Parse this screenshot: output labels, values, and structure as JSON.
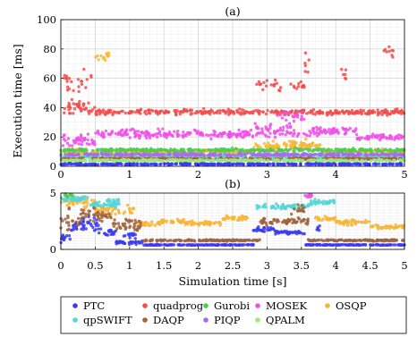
{
  "chart_data": [
    {
      "type": "scatter",
      "title": "(a)",
      "xlabel": "",
      "ylabel": "Execution time [ms]",
      "xlim": [
        0,
        5
      ],
      "ylim": [
        0,
        100
      ],
      "xticks": [
        0,
        0.5,
        1,
        1.5,
        2,
        2.5,
        3,
        3.5,
        4,
        4.5,
        5
      ],
      "xtick_labels": [
        "0",
        "",
        "1",
        "",
        "2",
        "",
        "3",
        "",
        "4",
        "",
        "5"
      ],
      "yticks": [
        0,
        20,
        40,
        60,
        80,
        100
      ],
      "ytick_labels": [
        "0",
        "20",
        "40",
        "60",
        "80",
        "100"
      ],
      "grid": true,
      "series": [
        {
          "name": "quadprog",
          "color": "#f24c4c",
          "segments": [
            [
              0,
              0.5,
              40,
              7
            ],
            [
              0.5,
              5,
              37,
              2.5
            ]
          ],
          "bursts": [
            [
              0.05,
              0.45,
              58,
              12
            ],
            [
              2.85,
              3.0,
              55,
              6
            ],
            [
              3.05,
              3.2,
              55,
              5
            ],
            [
              3.3,
              3.55,
              55,
              4
            ],
            [
              3.55,
              3.65,
              70,
              10
            ],
            [
              4.05,
              4.15,
              62,
              8
            ],
            [
              4.7,
              4.85,
              78,
              8
            ]
          ]
        },
        {
          "name": "MOSEK",
          "color": "#f050e8",
          "segments": [
            [
              0,
              0.5,
              17,
              6
            ],
            [
              0.5,
              2.8,
              22,
              4
            ],
            [
              2.8,
              3.8,
              24,
              6
            ],
            [
              3.8,
              4.3,
              24,
              3
            ],
            [
              4.3,
              5,
              20,
              2.5
            ]
          ],
          "bursts": [
            [
              3.15,
              3.55,
              35,
              6
            ]
          ]
        },
        {
          "name": "OSQP",
          "color": "#f7b63a",
          "segments": [
            [
              0,
              1.2,
              9,
              4
            ],
            [
              1.2,
              2.8,
              10,
              2
            ],
            [
              2.8,
              3.8,
              13,
              4
            ],
            [
              3.8,
              5,
              10,
              2
            ]
          ],
          "bursts": [
            [
              0.5,
              0.7,
              75,
              4
            ],
            [
              3.3,
              3.7,
              16,
              3
            ]
          ]
        },
        {
          "name": "Gurobi",
          "color": "#4ccc4c",
          "segments": [
            [
              0,
              5,
              11,
              1.5
            ]
          ],
          "bursts": []
        },
        {
          "name": "qpSWIFT",
          "color": "#55d6d6",
          "segments": [
            [
              0,
              5,
              6.5,
              1
            ]
          ],
          "bursts": []
        },
        {
          "name": "DAQP",
          "color": "#a0633a",
          "segments": [
            [
              0,
              5,
              5,
              1
            ]
          ],
          "bursts": []
        },
        {
          "name": "PIQP",
          "color": "#a56cf0",
          "segments": [
            [
              0,
              5,
              8,
              1.2
            ]
          ],
          "bursts": []
        },
        {
          "name": "QPALM",
          "color": "#a0e878",
          "segments": [
            [
              0,
              5,
              4,
              1
            ]
          ],
          "bursts": []
        },
        {
          "name": "PTC",
          "color": "#3b3bf0",
          "segments": [
            [
              0,
              5,
              1.5,
              0.7
            ]
          ],
          "bursts": []
        }
      ]
    },
    {
      "type": "scatter",
      "title": "(b)",
      "xlabel": "Simulation time [s]",
      "ylabel": "",
      "xlim": [
        0,
        5
      ],
      "ylim": [
        0,
        5
      ],
      "xticks": [
        0,
        0.5,
        1,
        1.5,
        2,
        2.5,
        3,
        3.5,
        4,
        4.5,
        5
      ],
      "xtick_labels": [
        "0",
        "0.5",
        "1",
        "1.5",
        "2",
        "2.5",
        "3",
        "3.5",
        "4",
        "4.5",
        "5"
      ],
      "yticks": [
        0,
        5
      ],
      "ytick_labels": [
        "0",
        "5"
      ],
      "grid": true,
      "series": [
        {
          "name": "OSQP",
          "color": "#f7b63a",
          "segments": [
            [
              0,
              0.5,
              4.2,
              0.8
            ],
            [
              0.5,
              1.1,
              3.5,
              0.6
            ],
            [
              1.1,
              1.45,
              2.3,
              0.3
            ],
            [
              1.45,
              1.8,
              2.5,
              0.3
            ],
            [
              1.8,
              2.35,
              2.3,
              0.3
            ],
            [
              2.35,
              2.75,
              2.8,
              0.3
            ],
            [
              3.7,
              4.0,
              2.7,
              0.3
            ],
            [
              4.0,
              4.5,
              2.4,
              0.3
            ],
            [
              4.5,
              5,
              2.0,
              0.3
            ]
          ],
          "bursts": []
        },
        {
          "name": "qpSWIFT",
          "color": "#55d6d6",
          "segments": [
            [
              0,
              0.4,
              4.5,
              0.4
            ],
            [
              0.4,
              0.85,
              4.0,
              0.3
            ],
            [
              2.85,
              3.6,
              3.8,
              0.3
            ],
            [
              3.6,
              4.0,
              4.2,
              0.3
            ]
          ],
          "bursts": [
            [
              0.65,
              0.85,
              4.3,
              0.3
            ]
          ]
        },
        {
          "name": "DAQP",
          "color": "#a0633a",
          "segments": [
            [
              0,
              0.3,
              2.5,
              1.2
            ],
            [
              0.3,
              0.75,
              3.0,
              1.0
            ],
            [
              0.75,
              1.2,
              2.2,
              0.8
            ],
            [
              1.2,
              2.9,
              0.8,
              0.1
            ],
            [
              2.9,
              3.6,
              2.5,
              0.4
            ],
            [
              3.6,
              5,
              0.8,
              0.1
            ]
          ],
          "bursts": [
            [
              3.35,
              3.55,
              3.5,
              0.5
            ]
          ]
        },
        {
          "name": "PTC",
          "color": "#3b3bf0",
          "segments": [
            [
              0,
              0.15,
              1.0,
              0.5
            ],
            [
              0.15,
              0.55,
              2.2,
              0.9
            ],
            [
              0.55,
              0.8,
              1.5,
              0.5
            ],
            [
              0.8,
              1.2,
              0.6,
              0.2
            ],
            [
              1.2,
              2.8,
              0.4,
              0.05
            ],
            [
              2.8,
              3.1,
              1.8,
              0.3
            ],
            [
              3.1,
              3.55,
              1.5,
              0.3
            ],
            [
              3.55,
              5,
              0.4,
              0.05
            ]
          ],
          "bursts": [
            [
              0.9,
              1.1,
              1.3,
              0.4
            ],
            [
              3.7,
              3.8,
              1.8,
              0.4
            ]
          ]
        },
        {
          "name": "Gurobi",
          "color": "#4ccc4c",
          "segments": [],
          "bursts": [
            [
              0.05,
              0.2,
              4.8,
              0.3
            ]
          ]
        },
        {
          "name": "MOSEK",
          "color": "#f050e8",
          "segments": [],
          "bursts": [
            [
              3.55,
              3.7,
              4.8,
              0.2
            ]
          ]
        }
      ]
    }
  ],
  "legend": {
    "entries": [
      {
        "label": "PTC",
        "color": "#3b3bf0"
      },
      {
        "label": "quadprog",
        "color": "#f24c4c"
      },
      {
        "label": "Gurobi",
        "color": "#4ccc4c"
      },
      {
        "label": "MOSEK",
        "color": "#f050e8"
      },
      {
        "label": "OSQP",
        "color": "#f7b63a"
      },
      {
        "label": "qpSWIFT",
        "color": "#55d6d6"
      },
      {
        "label": "DAQP",
        "color": "#a0633a"
      },
      {
        "label": "PIQP",
        "color": "#a56cf0"
      },
      {
        "label": "QPALM",
        "color": "#a0e878"
      }
    ]
  }
}
